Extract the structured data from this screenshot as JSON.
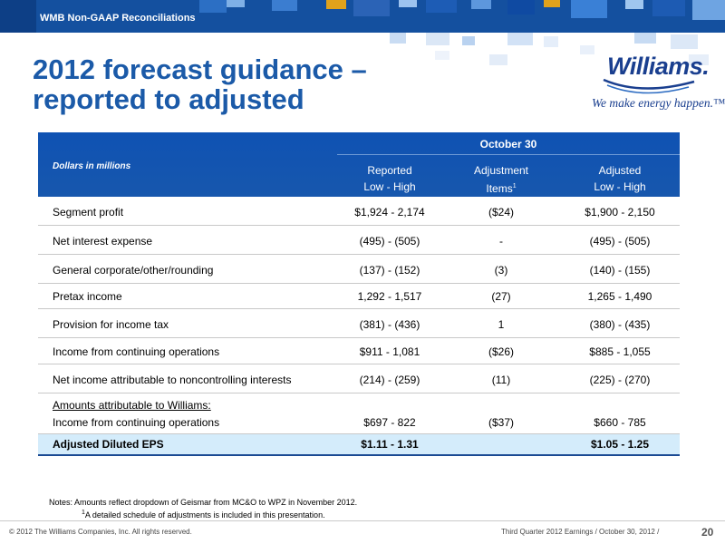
{
  "header": {
    "section_label": "WMB Non-GAAP Reconciliations",
    "title_line1": "2012 forecast guidance –",
    "title_line2": "reported to adjusted"
  },
  "logo": {
    "wordmark": "Williams.",
    "tagline": "We make energy happen.™"
  },
  "table": {
    "units_label": "Dollars in millions",
    "period": "October 30",
    "col_reported": [
      "Reported",
      "Low - High"
    ],
    "col_adjustment": [
      "Adjustment",
      "Items",
      "1"
    ],
    "col_adjusted": [
      "Adjusted",
      "Low - High"
    ],
    "rows": [
      {
        "label": "Segment profit",
        "reported": "$1,924 - 2,174",
        "adjustment": "($24)",
        "adjusted": "$1,900 - 2,150"
      },
      {
        "label": "Net interest expense",
        "reported": "(495) - (505)",
        "adjustment": "-",
        "adjusted": "(495) - (505)"
      },
      {
        "label": "General corporate/other/rounding",
        "reported": "(137) - (152)",
        "adjustment": "(3)",
        "adjusted": "(140) - (155)"
      },
      {
        "label": "Pretax income",
        "reported": "1,292  - 1,517",
        "adjustment": "(27)",
        "adjusted": "1,265 - 1,490"
      },
      {
        "label": "Provision for income tax",
        "reported": "(381) - (436)",
        "adjustment": "1",
        "adjusted": "(380) - (435)"
      },
      {
        "label": "Income from continuing operations",
        "reported": "$911  - 1,081",
        "adjustment": "($26)",
        "adjusted": "$885 - 1,055"
      },
      {
        "label": "Net income attributable to noncontrolling interests",
        "reported": "(214) - (259)",
        "adjustment": "(11)",
        "adjusted": "(225) - (270)"
      }
    ],
    "williams_heading": "Amounts attributable to Williams:",
    "williams_row": {
      "label": "Income from continuing operations",
      "reported": "$697  - 822",
      "adjustment": "($37)",
      "adjusted": "$660 - 785"
    },
    "eps_row": {
      "label": "Adjusted Diluted EPS",
      "reported": "$1.11  - 1.31",
      "adjustment": "",
      "adjusted": "$1.05 - 1.25"
    }
  },
  "notes": {
    "line1": "Notes:  Amounts reflect dropdown of Geismar from MC&O to WPZ in November 2012.",
    "line2_sup": "1",
    "line2": "A detailed schedule of adjustments is included in this presentation."
  },
  "footer": {
    "copyright": "© 2012 The Williams Companies, Inc. All rights reserved.",
    "event": "Third Quarter 2012 Earnings / October 30, 2012 /",
    "page": "20"
  },
  "colors": {
    "brand_blue": "#14509f",
    "title_blue": "#1b5aa8",
    "eps_highlight": "#d4ecfb"
  }
}
